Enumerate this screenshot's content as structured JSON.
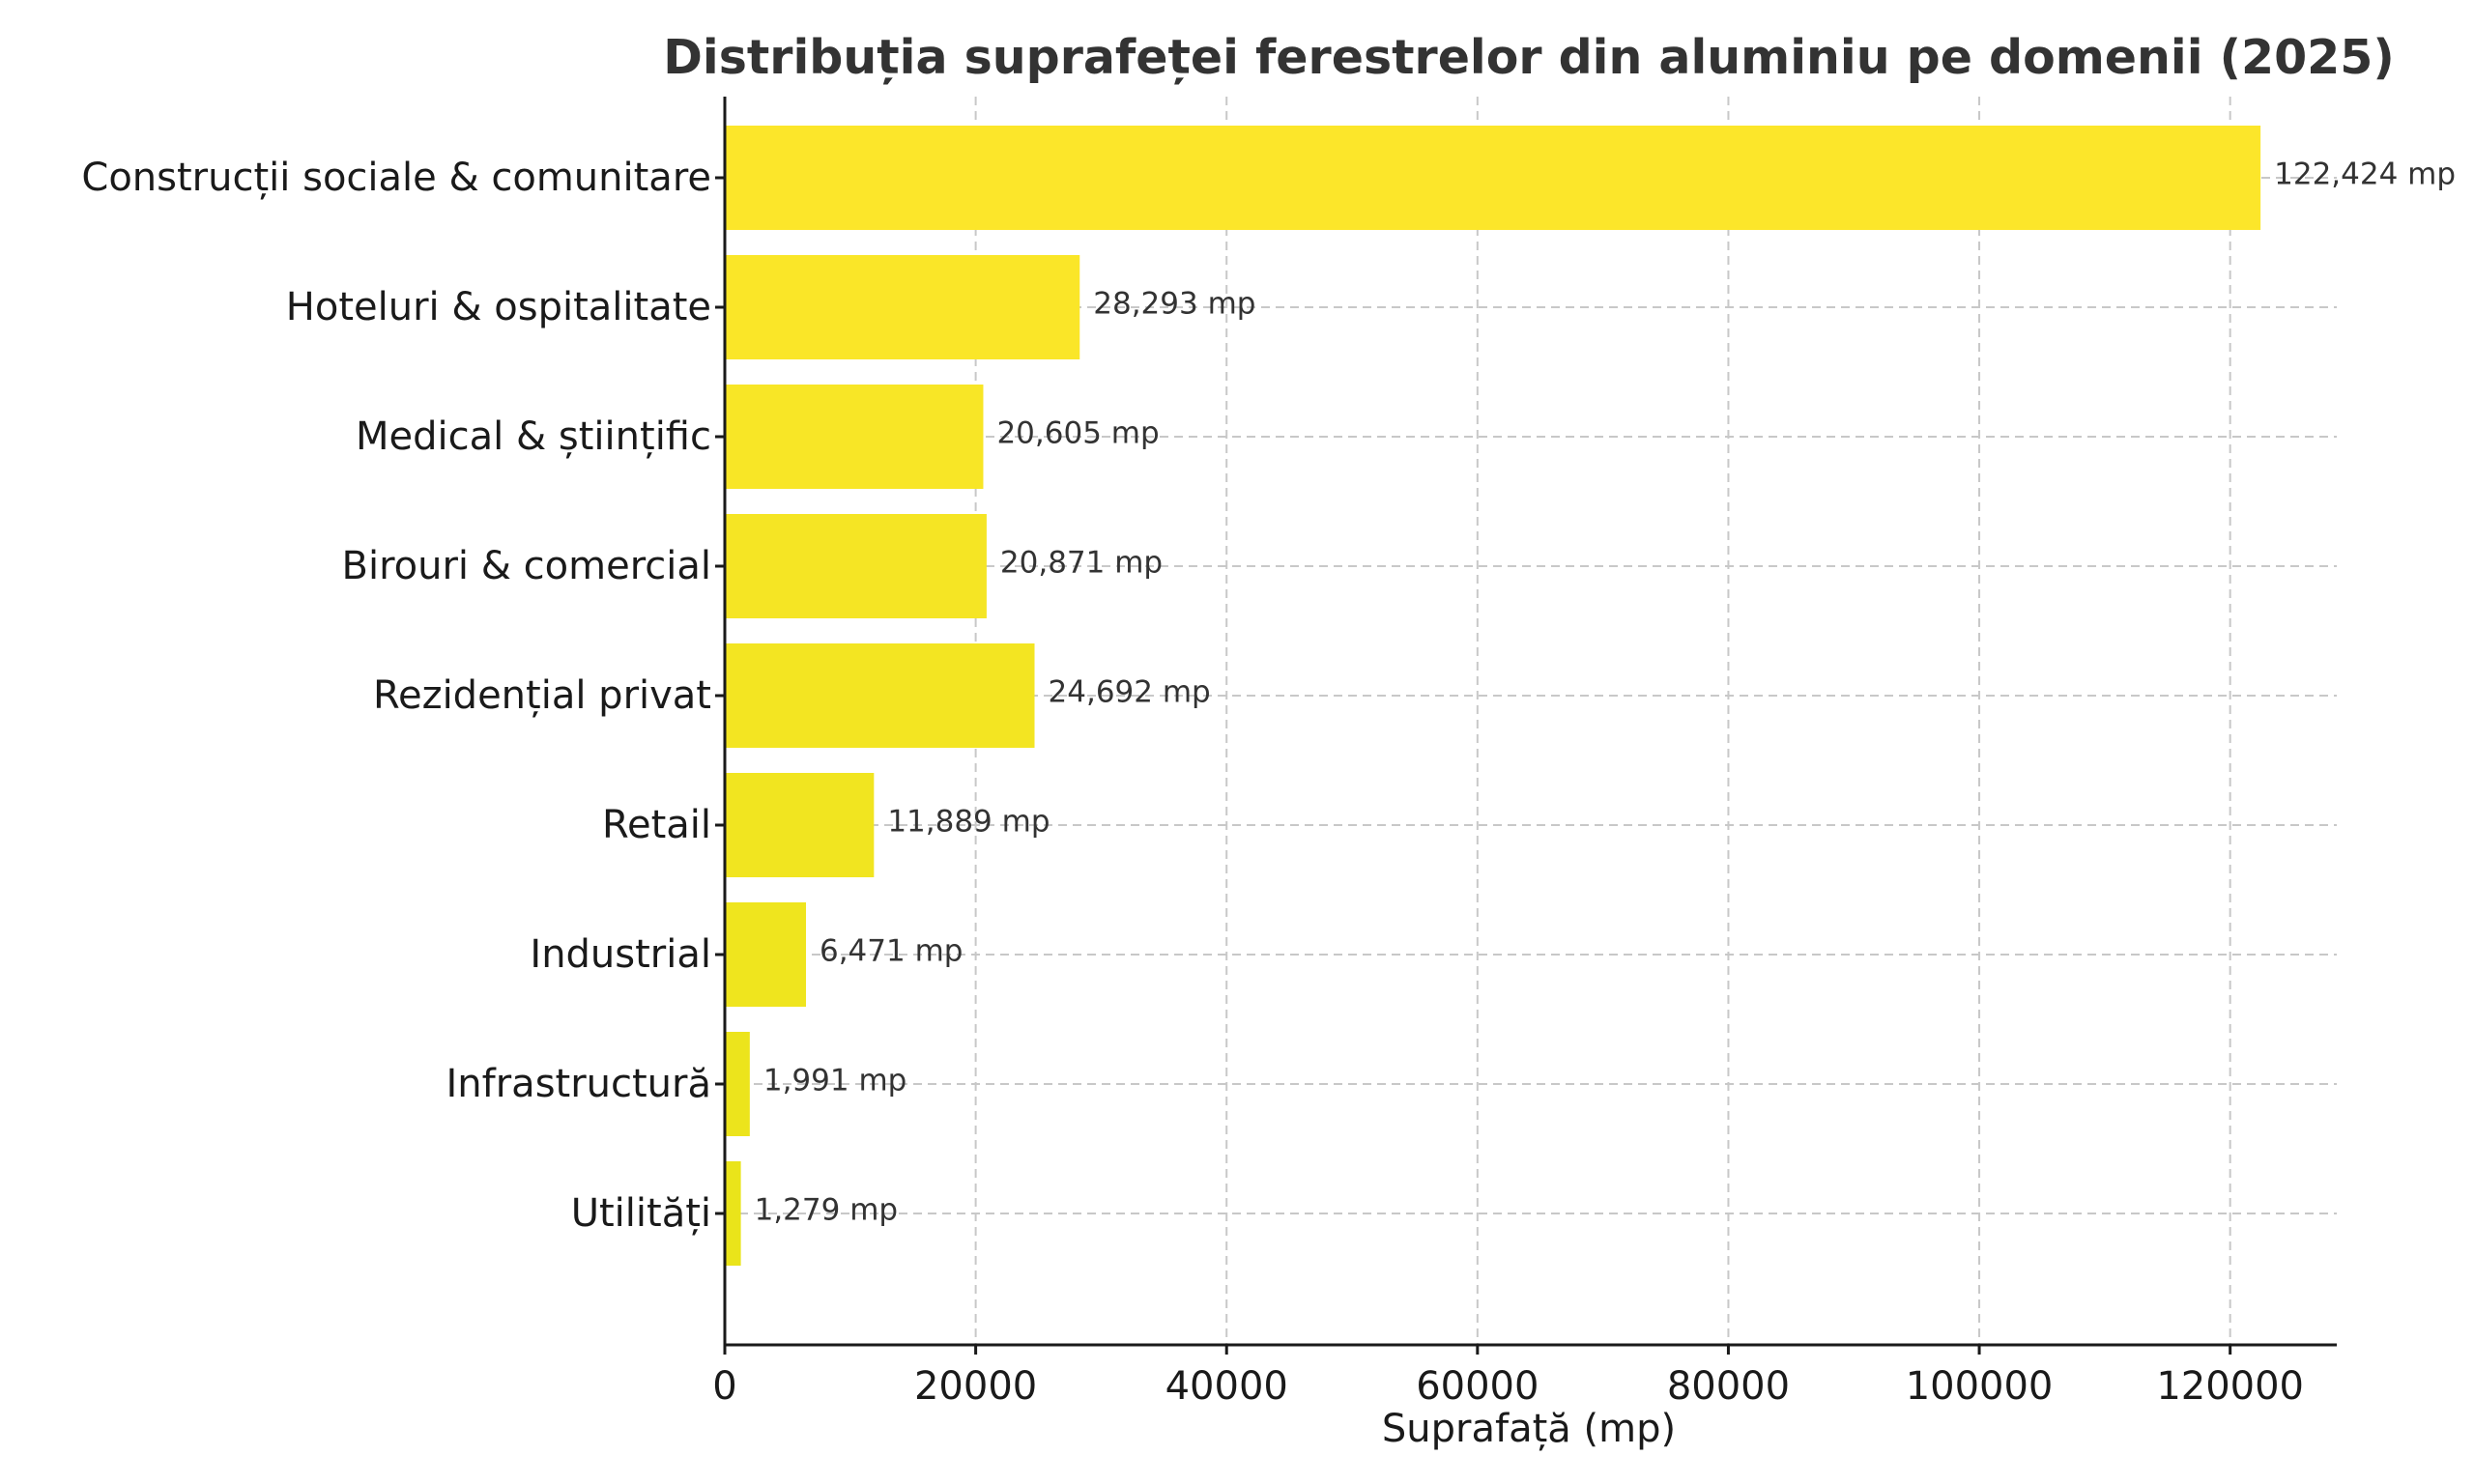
{
  "chart_data": {
    "type": "bar",
    "orientation": "horizontal",
    "title": "Distribuția suprafeței ferestrelor din aluminiu pe domenii (2025)",
    "xlabel": "Suprafață (mp)",
    "ylabel": "",
    "xlim": [
      0,
      128500
    ],
    "xticks": [
      0,
      20000,
      40000,
      60000,
      80000,
      100000,
      120000
    ],
    "xtick_labels": [
      "0",
      "20000",
      "40000",
      "60000",
      "80000",
      "100000",
      "120000"
    ],
    "grid": true,
    "categories": [
      "Construcții sociale & comunitare",
      "Hoteluri & ospitalitate",
      "Medical & științific",
      "Birouri & comercial",
      "Rezidențial privat",
      "Retail",
      "Industrial",
      "Infrastructură",
      "Utilități"
    ],
    "values": [
      122424,
      28293,
      20605,
      20871,
      24692,
      11889,
      6471,
      1991,
      1279
    ],
    "value_labels": [
      "122,424 mp",
      "28,293 mp",
      "20,605 mp",
      "20,871 mp",
      "24,692 mp",
      "11,889 mp",
      "6,471 mp",
      "1,991 mp",
      "1,279 mp"
    ],
    "bar_color_top": "#FCE62A",
    "bar_color_bottom": "#EAE41A"
  }
}
